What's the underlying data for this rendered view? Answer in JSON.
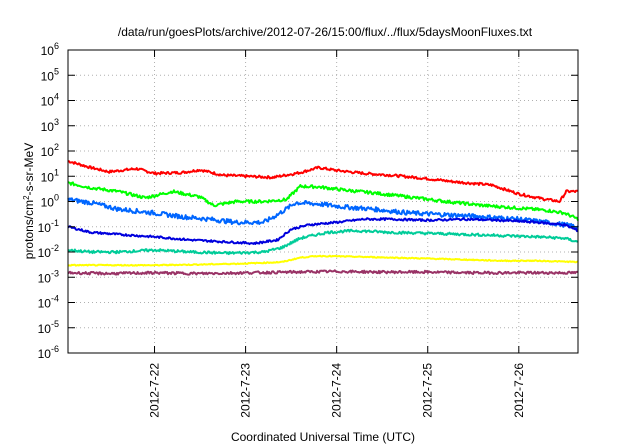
{
  "chart_data": {
    "type": "line",
    "title": "/data/run/goesPlots/archive/2012-07-26/15:00/flux/../flux/5daysMoonFluxes.txt",
    "xlabel": "Coordinated Universal Time (UTC)",
    "ylabel": {
      "pre": "protons/cm",
      "sup": "2",
      "post": "-s-sr-MeV"
    },
    "yscale": "log",
    "ylim_exp": [
      -6,
      6
    ],
    "xlim_days": [
      21.05,
      26.65
    ],
    "x_ticks": [
      {
        "day": 22,
        "label": "2012-7-22"
      },
      {
        "day": 23,
        "label": "2012-7-23"
      },
      {
        "day": 24,
        "label": "2012-7-24"
      },
      {
        "day": 25,
        "label": "2012-7-25"
      },
      {
        "day": 26,
        "label": "2012-7-26"
      }
    ],
    "y_ticks": [
      {
        "exp": -6,
        "base": "10",
        "sup": "-6"
      },
      {
        "exp": -5,
        "base": "10",
        "sup": "-5"
      },
      {
        "exp": -4,
        "base": "10",
        "sup": "-4"
      },
      {
        "exp": -3,
        "base": "10",
        "sup": "-3"
      },
      {
        "exp": -2,
        "base": "10",
        "sup": "-2"
      },
      {
        "exp": -1,
        "base": "10",
        "sup": "-1"
      },
      {
        "exp": 0,
        "base": "10",
        "sup": "0"
      },
      {
        "exp": 1,
        "base": "10",
        "sup": "1"
      },
      {
        "exp": 2,
        "base": "10",
        "sup": "2"
      },
      {
        "exp": 3,
        "base": "10",
        "sup": "3"
      },
      {
        "exp": 4,
        "base": "10",
        "sup": "4"
      },
      {
        "exp": 5,
        "base": "10",
        "sup": "5"
      },
      {
        "exp": 6,
        "base": "10",
        "sup": "6"
      }
    ],
    "grid": true,
    "legend": "none",
    "series": [
      {
        "color": "#ff0000",
        "noise": 0.05,
        "x": [
          21.05,
          21.3,
          21.5,
          21.8,
          22.0,
          22.3,
          22.5,
          22.75,
          23.0,
          23.3,
          23.6,
          23.8,
          24.0,
          24.3,
          24.6,
          25.0,
          25.3,
          25.7,
          26.0,
          26.25,
          26.45,
          26.52,
          26.65
        ],
        "y": [
          40,
          22,
          15,
          20,
          13,
          14,
          18,
          11,
          10,
          9,
          14,
          22,
          17,
          13,
          11,
          8,
          6,
          4.5,
          2,
          1.3,
          1.0,
          2.5,
          2.5
        ]
      },
      {
        "color": "#00ff00",
        "noise": 0.06,
        "x": [
          21.05,
          21.3,
          21.6,
          21.9,
          22.2,
          22.5,
          22.65,
          22.9,
          23.2,
          23.45,
          23.6,
          23.8,
          24.1,
          24.4,
          24.8,
          25.2,
          25.6,
          26.0,
          26.3,
          26.5,
          26.65
        ],
        "y": [
          5.5,
          3.5,
          2.5,
          1.4,
          2.5,
          1.5,
          0.7,
          1.0,
          1.0,
          1.2,
          4,
          3.8,
          2.8,
          2.2,
          1.5,
          1.0,
          0.7,
          0.55,
          0.45,
          0.35,
          0.2
        ]
      },
      {
        "color": "#0066ff",
        "noise": 0.09,
        "x": [
          21.05,
          21.3,
          21.6,
          22.0,
          22.3,
          22.6,
          22.9,
          23.2,
          23.35,
          23.55,
          23.8,
          24.1,
          24.4,
          24.8,
          25.2,
          25.6,
          26.0,
          26.3,
          26.5,
          26.65
        ],
        "y": [
          1.2,
          0.9,
          0.5,
          0.35,
          0.25,
          0.2,
          0.15,
          0.15,
          0.3,
          0.9,
          0.8,
          0.6,
          0.5,
          0.35,
          0.3,
          0.25,
          0.2,
          0.15,
          0.12,
          0.1
        ]
      },
      {
        "color": "#0000dd",
        "noise": 0.04,
        "x": [
          21.05,
          21.3,
          21.6,
          22.0,
          22.4,
          22.8,
          23.1,
          23.35,
          23.5,
          23.7,
          24.0,
          24.3,
          24.6,
          25.0,
          25.4,
          25.8,
          26.2,
          26.5,
          26.65
        ],
        "y": [
          0.1,
          0.06,
          0.05,
          0.04,
          0.03,
          0.025,
          0.022,
          0.03,
          0.08,
          0.12,
          0.15,
          0.2,
          0.2,
          0.18,
          0.2,
          0.18,
          0.15,
          0.12,
          0.07
        ]
      },
      {
        "color": "#00cc99",
        "noise": 0.05,
        "x": [
          21.05,
          21.3,
          21.6,
          22.0,
          22.4,
          22.8,
          23.2,
          23.4,
          23.6,
          23.9,
          24.2,
          24.6,
          25.0,
          25.4,
          25.8,
          26.2,
          26.5,
          26.65
        ],
        "y": [
          0.012,
          0.01,
          0.01,
          0.012,
          0.01,
          0.009,
          0.01,
          0.015,
          0.035,
          0.06,
          0.07,
          0.06,
          0.055,
          0.05,
          0.045,
          0.04,
          0.035,
          0.025
        ]
      },
      {
        "color": "#ffff00",
        "noise": 0.02,
        "x": [
          21.05,
          21.5,
          22.0,
          22.5,
          23.0,
          23.4,
          23.6,
          23.8,
          24.2,
          24.6,
          25.0,
          25.4,
          25.8,
          26.2,
          26.65
        ],
        "y": [
          0.003,
          0.003,
          0.003,
          0.0032,
          0.0035,
          0.004,
          0.006,
          0.007,
          0.0065,
          0.006,
          0.0055,
          0.005,
          0.0045,
          0.0045,
          0.004
        ]
      },
      {
        "color": "#993366",
        "noise": 0.05,
        "x": [
          21.05,
          21.5,
          22.0,
          22.5,
          23.0,
          23.5,
          24.0,
          24.5,
          25.0,
          25.5,
          26.0,
          26.65
        ],
        "y": [
          0.0015,
          0.0014,
          0.0015,
          0.0014,
          0.0015,
          0.0016,
          0.0017,
          0.0016,
          0.0016,
          0.0015,
          0.0015,
          0.0015
        ]
      }
    ]
  }
}
